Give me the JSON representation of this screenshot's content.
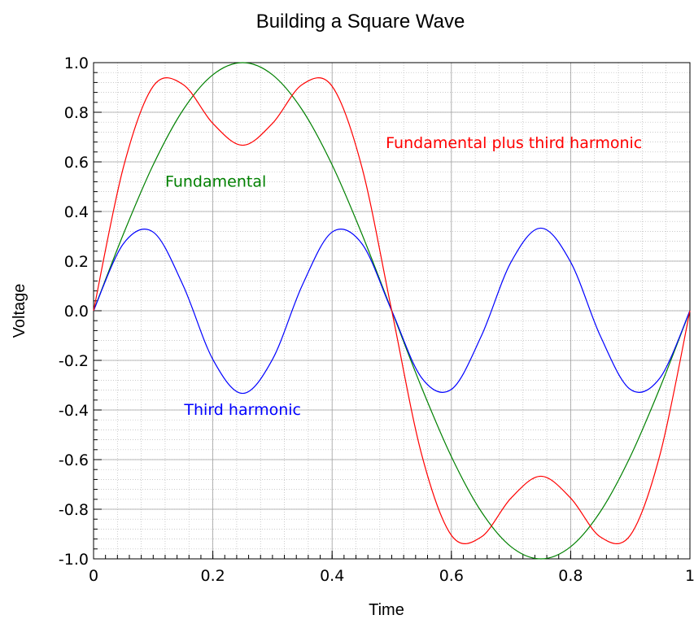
{
  "chart_data": {
    "type": "line",
    "title": "Building a Square Wave",
    "xlabel": "Time",
    "ylabel": "Voltage",
    "xlim": [
      0,
      1
    ],
    "ylim": [
      -1.0,
      1.0
    ],
    "grid": true,
    "x_ticks": [
      0,
      0.2,
      0.4,
      0.6,
      0.8,
      1
    ],
    "x_tick_labels": [
      "0",
      "0.2",
      "0.4",
      "0.6",
      "0.8",
      "1"
    ],
    "y_ticks": [
      -1.0,
      -0.8,
      -0.6,
      -0.4,
      -0.2,
      0.0,
      0.2,
      0.4,
      0.6,
      0.8,
      1.0
    ],
    "y_tick_labels": [
      "-1.0",
      "-0.8",
      "-0.6",
      "-0.4",
      "-0.2",
      "0.0",
      "0.2",
      "0.4",
      "0.6",
      "0.8",
      "1.0"
    ],
    "x": [
      0,
      0.05,
      0.1,
      0.15,
      0.2,
      0.25,
      0.3,
      0.35,
      0.4,
      0.45,
      0.5,
      0.55,
      0.6,
      0.65,
      0.7,
      0.75,
      0.8,
      0.85,
      0.9,
      0.95,
      1
    ],
    "series": [
      {
        "name": "Fundamental",
        "color": "#008000",
        "values": [
          0,
          0.309,
          0.588,
          0.809,
          0.951,
          1.0,
          0.951,
          0.809,
          0.588,
          0.309,
          0,
          -0.309,
          -0.588,
          -0.809,
          -0.951,
          -1.0,
          -0.951,
          -0.809,
          -0.588,
          -0.309,
          0
        ]
      },
      {
        "name": "Third harmonic",
        "color": "#0000ff",
        "values": [
          0,
          0.27,
          0.317,
          0.103,
          -0.196,
          -0.333,
          -0.196,
          0.103,
          0.317,
          0.27,
          0,
          -0.27,
          -0.317,
          -0.103,
          0.196,
          0.333,
          0.196,
          -0.103,
          -0.317,
          -0.27,
          0
        ]
      },
      {
        "name": "Fundamental plus third harmonic",
        "color": "#ff0000",
        "values": [
          0,
          0.578,
          0.905,
          0.912,
          0.755,
          0.667,
          0.755,
          0.912,
          0.905,
          0.578,
          0,
          -0.578,
          -0.905,
          -0.912,
          -0.755,
          -0.667,
          -0.755,
          -0.912,
          -0.905,
          -0.578,
          0
        ]
      }
    ],
    "annotations": [
      {
        "text": "Fundamental",
        "x": 0.12,
        "y": 0.5,
        "color": "#008000"
      },
      {
        "text": "Third harmonic",
        "x": 0.152,
        "y": -0.42,
        "color": "#0000ff"
      },
      {
        "text": "Fundamental plus third harmonic",
        "x": 0.49,
        "y": 0.655,
        "color": "#ff0000"
      }
    ]
  }
}
